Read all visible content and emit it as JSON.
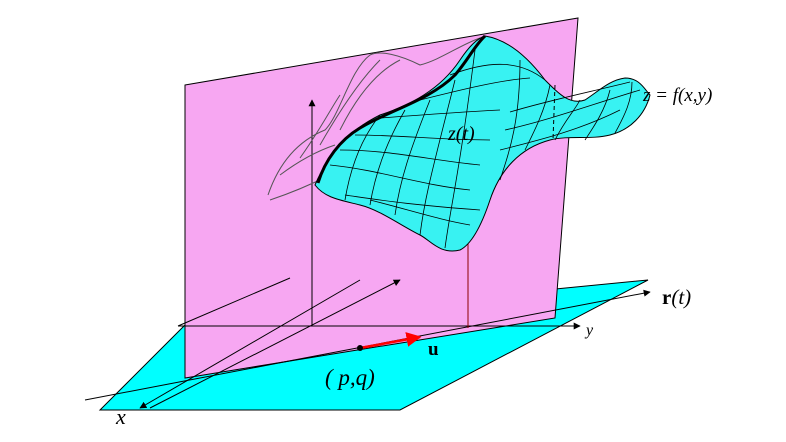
{
  "labels": {
    "surface_eq": "z  =  f(x,y)",
    "z_of_t": "z(t)",
    "r_of_t_r": "r",
    "r_of_t_t": "(t)",
    "u_vec": "u",
    "point": "( p,q)",
    "x_axis": "x",
    "y_axis": "y"
  },
  "colors": {
    "plane": "#f7a7f2",
    "floor": "#00ffff",
    "surface": "#38f2f2",
    "direction_vector": "#ff0000",
    "curve": "#000000",
    "outline": "#000000"
  },
  "icons": {
    "arrow": "arrowhead",
    "point_marker": "dot"
  }
}
